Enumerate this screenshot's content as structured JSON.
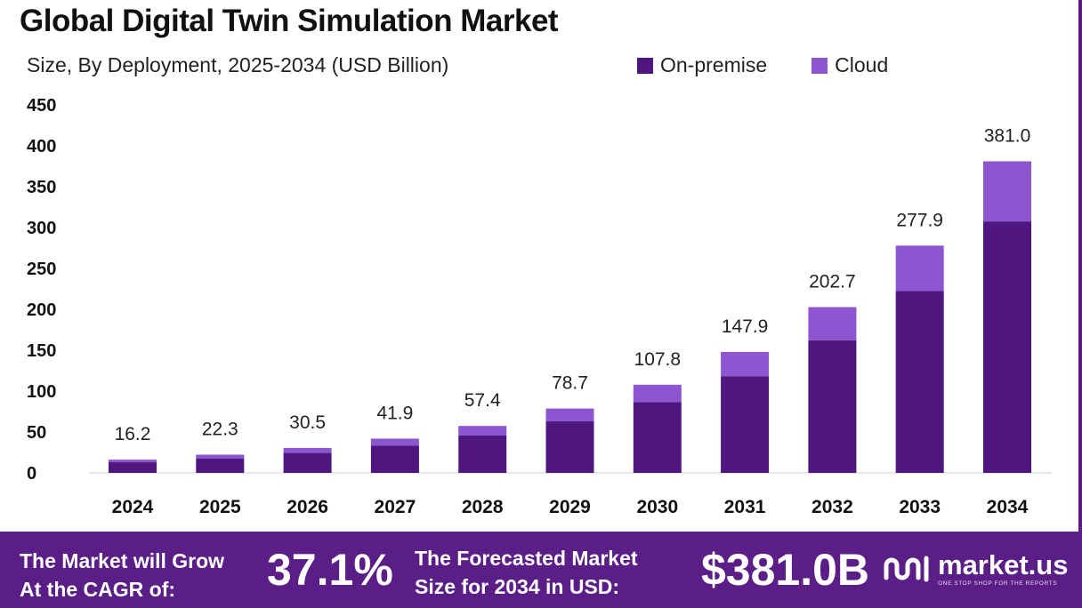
{
  "header": {
    "title": "Global Digital Twin Simulation Market",
    "subtitle": "Size, By Deployment, 2025-2034 (USD Billion)"
  },
  "colors": {
    "on_premise": "#4f1680",
    "cloud": "#8f55d0",
    "axis_text": "#111111",
    "footer_bg": "#5b1d86"
  },
  "chart_data": {
    "type": "bar",
    "stacked": true,
    "categories": [
      "2024",
      "2025",
      "2026",
      "2027",
      "2028",
      "2029",
      "2030",
      "2031",
      "2032",
      "2033",
      "2034"
    ],
    "series": [
      {
        "name": "On-premise",
        "values": [
          13.0,
          17.8,
          24.4,
          33.5,
          46.0,
          63.0,
          86.4,
          118.3,
          162.2,
          222.3,
          307.5
        ]
      },
      {
        "name": "Cloud",
        "values": [
          3.2,
          4.5,
          6.1,
          8.4,
          11.4,
          15.7,
          21.4,
          29.6,
          40.5,
          55.6,
          73.5
        ]
      }
    ],
    "totals": [
      "16.2",
      "22.3",
      "30.5",
      "41.9",
      "57.4",
      "78.7",
      "107.8",
      "147.9",
      "202.7",
      "277.9",
      "381.0"
    ],
    "yticks": [
      "0",
      "50",
      "100",
      "150",
      "200",
      "250",
      "300",
      "350",
      "400",
      "450"
    ],
    "ylim": [
      0,
      450
    ],
    "grid": false,
    "legend": "top-right"
  },
  "footer": {
    "cagr_label": "The Market will Grow\nAt the CAGR of:",
    "cagr_value": "37.1%",
    "forecast_label": "The Forecasted Market\nSize for 2034 in USD:",
    "forecast_value": "$381.0B",
    "brand_name": "market.us",
    "brand_tagline": "ONE STOP SHOP FOR THE REPORTS"
  }
}
